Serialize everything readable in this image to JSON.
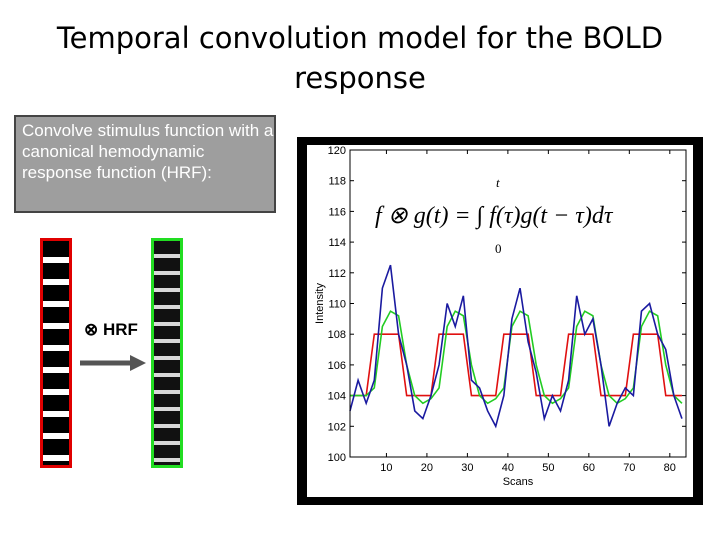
{
  "slide": {
    "title": "Temporal convolution model for the BOLD response",
    "text_box": "Convolve stimulus function with a canonical hemodynamic response function (HRF):",
    "hrf_label": "⊗ HRF"
  },
  "chart_data": {
    "type": "line",
    "x_label": "Scans",
    "y_label": "Intensity",
    "annotation": {
      "formula": "f ⊗ g(t) = ∫ f(τ)g(t − τ)dτ",
      "upper_limit": "t",
      "lower_limit": "0"
    },
    "x": [
      1,
      3,
      5,
      7,
      9,
      11,
      13,
      15,
      17,
      19,
      21,
      23,
      25,
      27,
      29,
      31,
      33,
      35,
      37,
      39,
      41,
      43,
      45,
      47,
      49,
      51,
      53,
      55,
      57,
      59,
      61,
      63,
      65,
      67,
      69,
      71,
      73,
      75,
      77,
      79,
      81,
      83
    ],
    "series": [
      {
        "color": "#e01010",
        "values": [
          104,
          104,
          104,
          108,
          108,
          108,
          108,
          104,
          104,
          104,
          104,
          108,
          108,
          108,
          108,
          104,
          104,
          104,
          104,
          108,
          108,
          108,
          108,
          104,
          104,
          104,
          104,
          108,
          108,
          108,
          108,
          104,
          104,
          104,
          104,
          108,
          108,
          108,
          108,
          104,
          104,
          104
        ]
      },
      {
        "color": "#22cc22",
        "values": [
          104,
          104,
          104,
          104.5,
          108.5,
          109.5,
          109.2,
          106,
          104,
          103.5,
          103.8,
          104.5,
          108.5,
          109.5,
          109.2,
          106,
          104,
          103.5,
          103.8,
          104.5,
          108.5,
          109.5,
          109.2,
          106,
          104,
          103.5,
          103.8,
          104.5,
          108.5,
          109.5,
          109.2,
          106,
          104,
          103.5,
          103.8,
          104.5,
          108.5,
          109.5,
          109.2,
          106,
          104,
          103.5
        ]
      },
      {
        "color": "#1a1aa0",
        "values": [
          103,
          105,
          103.5,
          105,
          111,
          112.5,
          108,
          106,
          103,
          102.5,
          104,
          106,
          110,
          108.5,
          110.5,
          105,
          104.5,
          103,
          102,
          104,
          109,
          111,
          107.5,
          105.5,
          102.5,
          104,
          103,
          105,
          110.5,
          108,
          109,
          106,
          102,
          103.5,
          104.5,
          104,
          109.5,
          110,
          108,
          107,
          104,
          102.5
        ]
      }
    ],
    "xlim": [
      1,
      84
    ],
    "xticks": [
      10,
      20,
      30,
      40,
      50,
      60,
      70,
      80
    ],
    "ylim": [
      100,
      120
    ],
    "yticks": [
      100,
      102,
      104,
      106,
      108,
      110,
      112,
      114,
      116,
      118,
      120
    ]
  }
}
